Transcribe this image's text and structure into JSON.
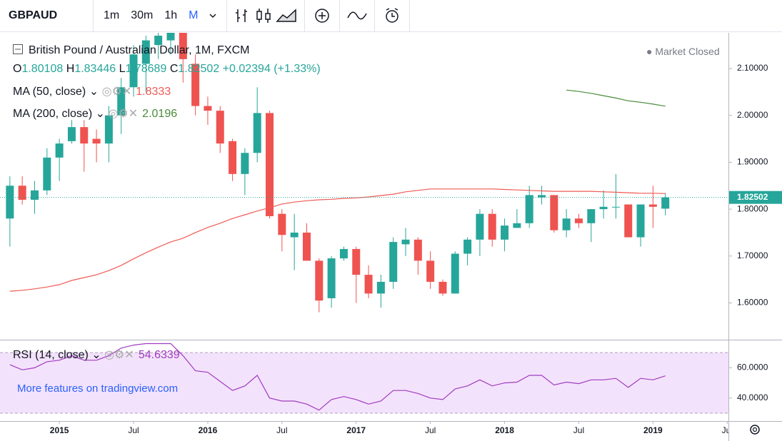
{
  "chart_data": {
    "type": "candlestick",
    "symbol": "GBPAUD",
    "intervals": [
      "1m",
      "30m",
      "1h",
      "M"
    ],
    "title": "British Pound / Australian Dollar, 1M, FXCM",
    "status": "Market Closed",
    "ohlc_prefixes": [
      "O",
      "H",
      "L",
      "C"
    ],
    "change_label": "+0.02394 (+1.33%)",
    "promo": "More features on tradingview.com",
    "up_color": "#26a69a",
    "down_color": "#ef5350",
    "open": [
      1.78,
      1.85,
      1.82,
      1.84,
      1.91,
      1.945,
      1.975,
      1.95,
      1.94,
      2.0,
      2.06,
      2.11,
      2.15,
      2.16,
      2.18,
      2.11,
      2.02,
      2.01,
      1.945,
      1.875,
      1.92,
      2.005,
      1.79,
      1.74,
      1.75,
      1.69,
      1.61,
      1.695,
      1.715,
      1.66,
      1.62,
      1.645,
      1.725,
      1.735,
      1.69,
      1.645,
      1.62,
      1.705,
      1.735,
      1.79,
      1.735,
      1.76,
      1.77,
      1.825,
      1.83,
      1.755,
      1.78,
      1.77,
      1.8,
      1.805,
      1.81,
      1.74,
      1.81,
      1.80108
    ],
    "high": [
      1.87,
      1.87,
      1.86,
      1.93,
      1.95,
      1.99,
      1.99,
      1.97,
      2.02,
      2.08,
      2.15,
      2.17,
      2.2,
      2.2,
      2.2,
      2.13,
      2.04,
      2.02,
      1.95,
      1.93,
      2.06,
      2.01,
      1.8,
      1.79,
      1.77,
      1.695,
      1.7,
      1.72,
      1.72,
      1.68,
      1.66,
      1.74,
      1.76,
      1.74,
      1.71,
      1.65,
      1.71,
      1.74,
      1.8,
      1.8,
      1.78,
      1.8,
      1.85,
      1.85,
      1.83,
      1.8,
      1.79,
      1.8,
      1.84,
      1.875,
      1.81,
      1.81,
      1.85,
      1.83446
    ],
    "low": [
      1.72,
      1.81,
      1.79,
      1.83,
      1.86,
      1.94,
      1.88,
      1.9,
      1.9,
      1.96,
      2.04,
      2.05,
      2.12,
      2.13,
      2.07,
      2.0,
      1.98,
      1.92,
      1.86,
      1.83,
      1.9,
      1.78,
      1.71,
      1.67,
      1.69,
      1.58,
      1.59,
      1.69,
      1.6,
      1.61,
      1.59,
      1.63,
      1.7,
      1.66,
      1.63,
      1.615,
      1.62,
      1.68,
      1.7,
      1.72,
      1.71,
      1.76,
      1.76,
      1.81,
      1.75,
      1.74,
      1.76,
      1.73,
      1.78,
      1.78,
      1.74,
      1.72,
      1.76,
      1.78689
    ],
    "close": [
      1.85,
      1.82,
      1.84,
      1.91,
      1.94,
      1.975,
      1.94,
      1.94,
      2.0,
      2.06,
      2.13,
      2.16,
      2.17,
      2.18,
      2.12,
      2.02,
      2.01,
      1.94,
      1.875,
      1.92,
      2.005,
      1.785,
      1.745,
      1.75,
      1.69,
      1.605,
      1.695,
      1.715,
      1.66,
      1.62,
      1.645,
      1.73,
      1.735,
      1.69,
      1.645,
      1.62,
      1.705,
      1.735,
      1.79,
      1.735,
      1.765,
      1.77,
      1.83,
      1.83,
      1.755,
      1.78,
      1.77,
      1.8,
      1.805,
      1.805,
      1.74,
      1.81,
      1.805,
      1.82502
    ],
    "xlim": [
      -0.8,
      58.1
    ],
    "xticks": [
      {
        "value": 4,
        "label": "2015"
      },
      {
        "value": 10,
        "label": "Jul"
      },
      {
        "value": 16,
        "label": "2016"
      },
      {
        "value": 22,
        "label": "Jul"
      },
      {
        "value": 28,
        "label": "2017"
      },
      {
        "value": 34,
        "label": "Jul"
      },
      {
        "value": 40,
        "label": "2018"
      },
      {
        "value": 46,
        "label": "Jul"
      },
      {
        "value": 52,
        "label": "2019"
      },
      {
        "value": 58,
        "label": "Jul"
      }
    ],
    "ylim": [
      1.5216,
      2.1761
    ],
    "yticks": [
      {
        "value": 1.6,
        "label": "1.60000"
      },
      {
        "value": 1.7,
        "label": "1.70000"
      },
      {
        "value": 1.8,
        "label": "1.80000"
      },
      {
        "value": 1.9,
        "label": "1.90000"
      },
      {
        "value": 2.0,
        "label": "2.00000"
      },
      {
        "value": 2.1,
        "label": "2.10000"
      }
    ],
    "series": [
      {
        "name": "MA (50, close)",
        "color": "#f05a55",
        "values": [
          1.625,
          1.627,
          1.63,
          1.634,
          1.639,
          1.648,
          1.654,
          1.66,
          1.669,
          1.68,
          1.694,
          1.707,
          1.719,
          1.73,
          1.738,
          1.75,
          1.761,
          1.77,
          1.78,
          1.788,
          1.796,
          1.803,
          1.811,
          1.815,
          1.818,
          1.82,
          1.821,
          1.823,
          1.824,
          1.826,
          1.829,
          1.832,
          1.837,
          1.84,
          1.843,
          1.843,
          1.843,
          1.843,
          1.843,
          1.843,
          1.842,
          1.841,
          1.84,
          1.839,
          1.838,
          1.838,
          1.838,
          1.838,
          1.837,
          1.836,
          1.835,
          1.834,
          1.834,
          1.8333
        ]
      },
      {
        "name": "MA (200, close)",
        "color": "#4a8c3a",
        "values": [
          null,
          null,
          null,
          null,
          null,
          null,
          null,
          null,
          null,
          null,
          null,
          null,
          null,
          null,
          null,
          null,
          null,
          null,
          null,
          null,
          null,
          null,
          null,
          null,
          null,
          null,
          null,
          null,
          null,
          null,
          null,
          null,
          null,
          null,
          null,
          null,
          null,
          null,
          null,
          null,
          null,
          null,
          null,
          null,
          null,
          2.054,
          2.051,
          2.047,
          2.042,
          2.037,
          2.031,
          2.028,
          2.024,
          2.0196
        ]
      }
    ],
    "rsi": {
      "name": "RSI (14, close)",
      "color": "#a03cc0",
      "band_color": "#f3e2fb",
      "bands": [
        70,
        30
      ],
      "ylim": [
        24.8,
        78.1
      ],
      "yticks": [
        {
          "value": 40,
          "label": "40.0000"
        },
        {
          "value": 60,
          "label": "60.0000"
        }
      ],
      "values": [
        62,
        58.6,
        60,
        64,
        65,
        68,
        65,
        65,
        68,
        73,
        75,
        76,
        76,
        76,
        68,
        58,
        57,
        51,
        45,
        48,
        55,
        40,
        38,
        38,
        36,
        32,
        39,
        41,
        39,
        36,
        38,
        45,
        45,
        43,
        40,
        39,
        46,
        48,
        52,
        48,
        50,
        50.5,
        55,
        55,
        48.6,
        50.5,
        49.5,
        52,
        52,
        53,
        47,
        53,
        52,
        54.6339
      ]
    }
  }
}
